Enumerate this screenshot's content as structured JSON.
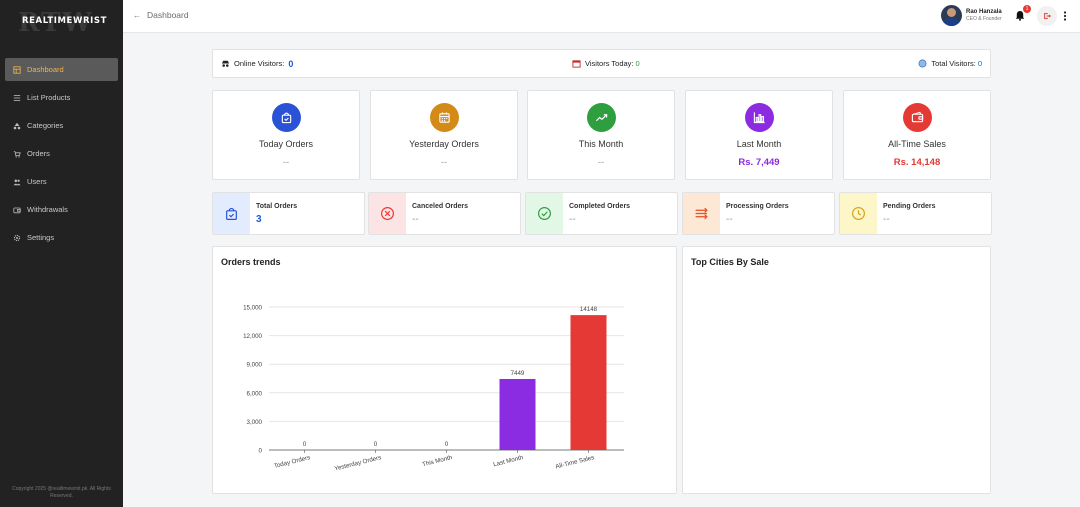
{
  "sidebar": {
    "logo": {
      "big": "RTW",
      "word": "REALTIMEWRIST"
    },
    "items": [
      {
        "label": "Dashboard",
        "icon": "dashboard-icon"
      },
      {
        "label": "List Products",
        "icon": "list-icon"
      },
      {
        "label": "Categories",
        "icon": "categories-icon"
      },
      {
        "label": "Orders",
        "icon": "cart-icon"
      },
      {
        "label": "Users",
        "icon": "users-icon"
      },
      {
        "label": "Withdrawals",
        "icon": "wallet-icon"
      },
      {
        "label": "Settings",
        "icon": "gear-icon"
      }
    ],
    "copyright": "Copyright 2025 @realtimewrist.pk. All Rights Reserved."
  },
  "header": {
    "breadcrumb": "Dashboard",
    "user": {
      "name": "Rao Hanzala",
      "role": "CEO & Founder"
    },
    "notifications": "1"
  },
  "visitors": {
    "online_label": "Online Visitors:",
    "online_value": "0",
    "today_label": "Visitors Today:",
    "today_value": "0",
    "total_label": "Total Visitors:",
    "total_value": "0"
  },
  "stats": [
    {
      "label": "Today Orders",
      "value": "--",
      "color": "#2a52d6",
      "icon": "bag-check-icon"
    },
    {
      "label": "Yesterday Orders",
      "value": "--",
      "color": "#d48a16",
      "icon": "calendar-icon"
    },
    {
      "label": "This Month",
      "value": "--",
      "color": "#2e9e3e",
      "icon": "trend-up-icon"
    },
    {
      "label": "Last Month",
      "value": "Rs. 7,449",
      "color": "#8b2be2",
      "icon": "bar-chart-icon"
    },
    {
      "label": "All-Time Sales",
      "value": "Rs. 14,148",
      "color": "#e53935",
      "icon": "wallet-icon"
    }
  ],
  "orders": [
    {
      "label": "Total Orders",
      "value": "3",
      "bg": "#e3ecff",
      "color": "#2a52d6",
      "icon": "bag-check-icon"
    },
    {
      "label": "Canceled Orders",
      "value": "--",
      "bg": "#fde4e4",
      "color": "#e53935",
      "icon": "x-circle-icon"
    },
    {
      "label": "Completed Orders",
      "value": "--",
      "bg": "#e2f7e6",
      "color": "#2e9e3e",
      "icon": "check-circle-icon"
    },
    {
      "label": "Processing Orders",
      "value": "--",
      "bg": "#fde7d5",
      "color": "#e5532a",
      "icon": "arrows-icon"
    },
    {
      "label": "Pending Orders",
      "value": "--",
      "bg": "#fdf6c9",
      "color": "#d6a416",
      "icon": "clock-icon"
    }
  ],
  "panels": {
    "trends_title": "Orders trends",
    "cities_title": "Top Cities By Sale"
  },
  "chart_data": {
    "type": "bar",
    "categories": [
      "Today Orders",
      "Yesterday Orders",
      "This Month",
      "Last Month",
      "All-Time Sales"
    ],
    "values": [
      0,
      0,
      0,
      7449,
      14148
    ],
    "data_labels": [
      "0",
      "0",
      "0",
      "7449",
      "14148"
    ],
    "colors": [
      "#8b2be2",
      "#8b2be2",
      "#8b2be2",
      "#8b2be2",
      "#e53935"
    ],
    "yticks": [
      "0",
      "3,000",
      "6,000",
      "9,000",
      "12,000",
      "15,000"
    ],
    "ylim": [
      0,
      15000
    ],
    "grid": true
  }
}
